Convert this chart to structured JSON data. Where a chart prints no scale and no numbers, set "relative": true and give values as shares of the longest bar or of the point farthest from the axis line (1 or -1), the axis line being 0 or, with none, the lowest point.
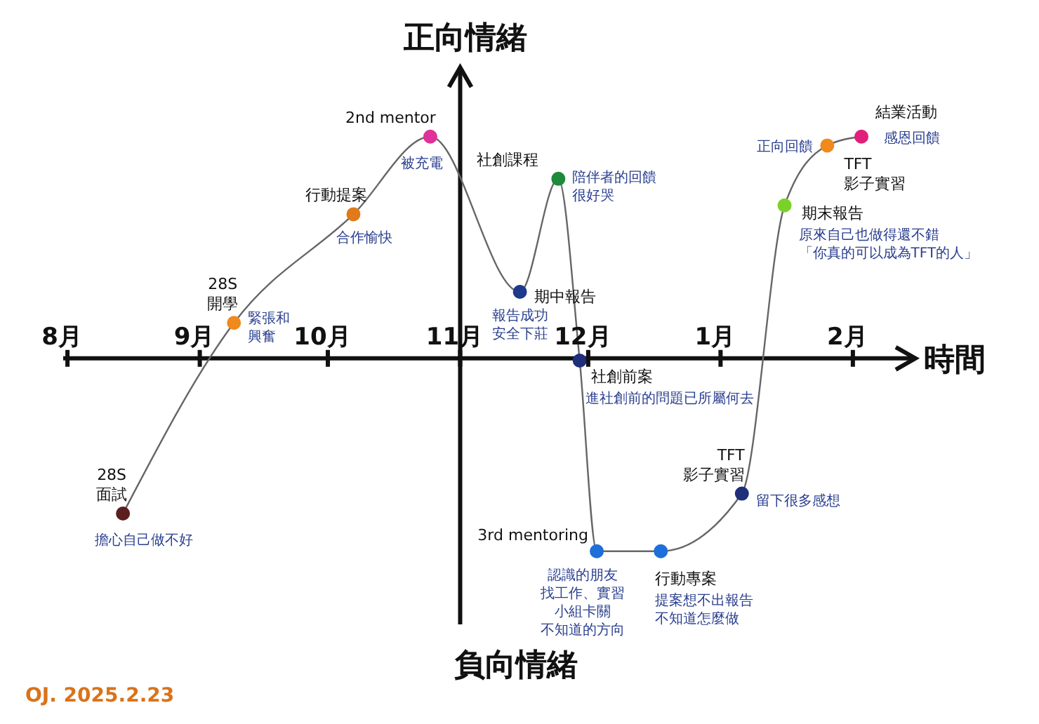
{
  "chart_data": {
    "type": "line",
    "relative": true,
    "ylabel": "正向情緒",
    "xlabel": "時間",
    "xlim": [
      "2024-07-31",
      "2025-02-15"
    ],
    "xticks": [
      {
        "value": "2024-08-01",
        "label": "8月"
      },
      {
        "value": "2024-09-01",
        "label": "9月"
      },
      {
        "value": "2024-10-01",
        "label": "10月"
      },
      {
        "value": "2024-11-01",
        "label": "11月"
      },
      {
        "value": "2024-12-01",
        "label": "12月"
      },
      {
        "value": "2025-01-01",
        "label": "1月"
      },
      {
        "value": "2025-02-01",
        "label": "2月"
      }
    ],
    "x": [
      "2024-08-14",
      "2024-09-09",
      "2024-10-07",
      "2024-10-25",
      "2024-11-15",
      "2024-11-24",
      "2024-11-29",
      "2024-12-03",
      "2024-12-18",
      "2025-01-06",
      "2025-01-16",
      "2025-01-26",
      "2025-02-03"
    ],
    "series": [
      {
        "color": "#666666",
        "values": [
          -0.7,
          0.16,
          0.65,
          1,
          0.3,
          0.81,
          -0.01,
          -0.87,
          -0.87,
          -0.61,
          0.69,
          0.96,
          1
        ],
        "colors": [
          "#5a1f1f",
          "#f08a1c",
          "#e07a1a",
          "#e0309a",
          "#1f3a8a",
          "#1f8a3a",
          "#1f2f7a",
          "#1e6fd9",
          "#1e6fd9",
          "#1f2f7a",
          "#7ad12a",
          "#f08a1c",
          "#e0207a"
        ]
      }
    ],
    "marker": "circle",
    "line_style": "solid",
    "annotations": [
      "負向情緒",
      "OJ. 2025.2.23",
      {
        "text": "28S\n面試",
        "x": "2024-08-14",
        "y": -0.7
      },
      {
        "text": "擔心自己做不好",
        "x": "2024-08-14",
        "y": -0.7
      },
      {
        "text": "28S\n開學",
        "x": "2024-09-09",
        "y": 0.16
      },
      {
        "text": "緊張和",
        "x": "2024-09-09",
        "y": 0.16
      },
      {
        "text": "興奮",
        "x": "2024-09-09",
        "y": 0.16
      },
      {
        "text": "行動提案",
        "x": "2024-10-07",
        "y": 0.65
      },
      {
        "text": "合作愉快",
        "x": "2024-10-07",
        "y": 0.65
      },
      {
        "text": "2nd mentor",
        "x": "2024-10-25",
        "y": 1
      },
      {
        "text": "被充電",
        "x": "2024-10-25",
        "y": 1
      },
      {
        "text": "期中報告",
        "x": "2024-11-15",
        "y": 0.3
      },
      {
        "text": "報告成功",
        "x": "2024-11-15",
        "y": 0.3
      },
      {
        "text": "安全下莊",
        "x": "2024-11-15",
        "y": 0.3
      },
      {
        "text": "社創課程",
        "x": "2024-11-24",
        "y": 0.81
      },
      {
        "text": "陪伴者的回饋",
        "x": "2024-11-24",
        "y": 0.81
      },
      {
        "text": "很好哭",
        "x": "2024-11-24",
        "y": 0.81
      },
      {
        "text": "社創前案",
        "x": "2024-11-29",
        "y": -0.01
      },
      {
        "text": "進社創前的問題已所屬何去",
        "x": "2024-11-29",
        "y": -0.01
      },
      {
        "text": "3rd mentoring",
        "x": "2024-12-03",
        "y": -0.87
      },
      {
        "text": "認識的朋友",
        "x": "2024-12-03",
        "y": -0.87
      },
      {
        "text": "找工作、實習",
        "x": "2024-12-03",
        "y": -0.87
      },
      "小組卡關",
      "不知道的方向",
      {
        "text": "行動專案",
        "x": "2024-12-18",
        "y": -0.87
      },
      "提案想不出報告",
      "不知道怎麼做",
      {
        "text": "TFT\n影子實習",
        "x": "2025-01-06",
        "y": -0.61
      },
      {
        "text": "留下很多感想",
        "x": "2025-01-06",
        "y": -0.61
      },
      {
        "text": "期末報告",
        "x": "2025-01-16",
        "y": 0.69
      },
      {
        "text": "原來自己也做得還不錯",
        "x": "2025-01-16",
        "y": 0.69
      },
      "「你真的可以成為TFT的人」",
      {
        "text": "TFT\n影子實習",
        "x": "2025-01-26",
        "y": 0.96
      },
      {
        "text": "正向回饋",
        "x": "2025-01-26",
        "y": 0.96
      },
      {
        "text": "結業活動",
        "x": "2025-02-03",
        "y": 1
      },
      {
        "text": "感恩回饋",
        "x": "2025-02-03",
        "y": 1
      }
    ]
  }
}
